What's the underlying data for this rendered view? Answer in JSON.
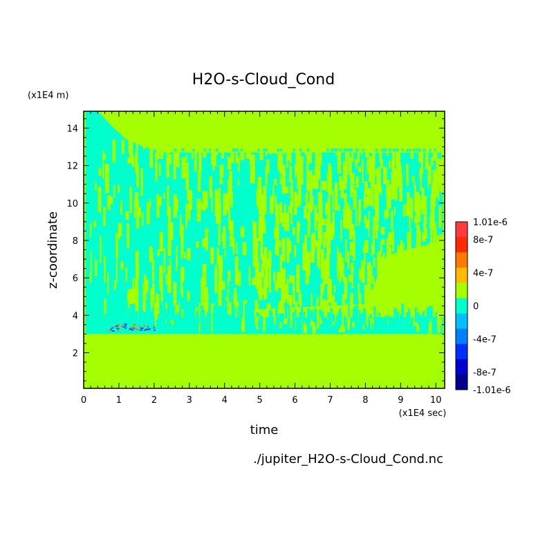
{
  "chart_data": {
    "type": "heatmap",
    "title": "H2O-s-Cloud_Cond",
    "xlabel": "time",
    "ylabel": "z-coordinate",
    "x_unit": "(x1E4 sec)",
    "y_unit": "(x1E4 m)",
    "xlim": [
      0,
      10.25
    ],
    "ylim": [
      0.1,
      14.9
    ],
    "x_ticks": [
      "0",
      "1",
      "2",
      "3",
      "4",
      "5",
      "6",
      "7",
      "8",
      "9",
      "10"
    ],
    "y_ticks": [
      "2",
      "4",
      "6",
      "8",
      "10",
      "12",
      "14"
    ],
    "colorbar": {
      "labels": [
        "1.01e-6",
        "8e-7",
        "4e-7",
        "0",
        "-4e-7",
        "-8e-7",
        "-1.01e-6"
      ],
      "levels": [
        {
          "value": 1.01e-06,
          "color": "#ff3b3b"
        },
        {
          "value": 8e-07,
          "color": "#ff2a00"
        },
        {
          "value": 6e-07,
          "color": "#ff7a00"
        },
        {
          "value": 4e-07,
          "color": "#ffbb00"
        },
        {
          "value": 2e-07,
          "color": "#a6ff00"
        },
        {
          "value": 0,
          "color": "#00ffcc"
        },
        {
          "value": -2e-07,
          "color": "#00c0ff"
        },
        {
          "value": -4e-07,
          "color": "#0080ff"
        },
        {
          "value": -6e-07,
          "color": "#0030ff"
        },
        {
          "value": -8e-07,
          "color": "#0000d0"
        },
        {
          "value": -1.01e-06,
          "color": "#00008a"
        }
      ]
    },
    "regions": {
      "background_value_color": "#a6ff00",
      "negative_band_color": "#00ffcc",
      "negative_band_z": [
        3.0,
        12.7
      ],
      "negative_band_top_z_at_start": 14.9,
      "strong_positive_color": "#ff7a00",
      "strong_negative_color": "#0050ff",
      "strong_features_z": [
        3.2,
        3.8
      ],
      "strong_features_time": [
        0.7,
        2.0
      ]
    }
  },
  "file_label": "./jupiter_H2O-s-Cloud_Cond.nc"
}
